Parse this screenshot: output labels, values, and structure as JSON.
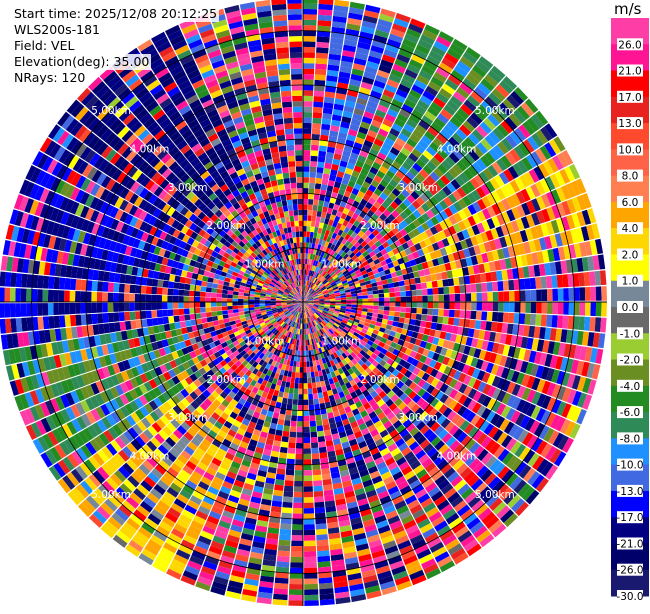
{
  "info": {
    "start_time": "Start time: 2025/12/08 20:12:25",
    "instrument": "WLS200s-181",
    "field": "Field: VEL",
    "elevation": "Elevation(deg): 35.00",
    "nrays": "NRays: 120"
  },
  "chart_data": {
    "type": "heatmap",
    "projection": "polar-ppi",
    "field": "VEL",
    "units": "m/s",
    "n_rays": 120,
    "elevation_deg": 35.0,
    "range_rings_km": [
      1.0,
      2.0,
      3.0,
      4.0,
      5.0
    ],
    "range_ring_labels": [
      "1.00km",
      "2.00km",
      "3.00km",
      "4.00km",
      "5.00km"
    ],
    "max_range_km": 5.6,
    "n_gates": 56,
    "colorbar": {
      "title": "m/s",
      "vmin": -30.0,
      "vmax": 30.0,
      "ticks": [
        "26.0",
        "21.0",
        "17.0",
        "13.0",
        "10.0",
        "8.0",
        "6.0",
        "4.0",
        "2.0",
        "1.0",
        "0.0",
        "-1.0",
        "-2.0",
        "-4.0",
        "-6.0",
        "-8.0",
        "-10.0",
        "-13.0",
        "-17.0",
        "-21.0",
        "-26.0",
        "-30.0"
      ],
      "bounds": [
        30,
        26,
        21,
        17,
        13,
        10,
        8,
        6,
        4,
        2,
        1,
        0,
        -1,
        -2,
        -4,
        -6,
        -8,
        -10,
        -13,
        -17,
        -21,
        -26,
        -30
      ],
      "colors": [
        "#ff3da6",
        "#ff1493",
        "#ff0000",
        "#e8231f",
        "#ff4a2e",
        "#ff6347",
        "#ff7f50",
        "#ffa500",
        "#ffd700",
        "#ffff00",
        "#778899",
        "#696969",
        "#9acd32",
        "#6b8e23",
        "#228b22",
        "#2e8b57",
        "#1e90ff",
        "#4169e1",
        "#0000ff",
        "#000080",
        "#00006b",
        "#191970"
      ]
    }
  }
}
